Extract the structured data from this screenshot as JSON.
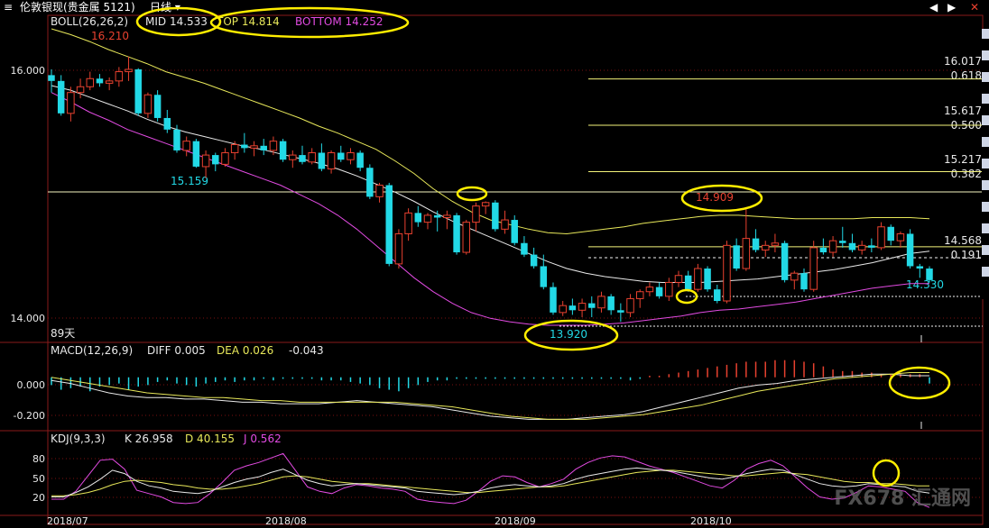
{
  "window": {
    "title": "伦敦银现(贵金属 5121)",
    "period": "日线",
    "menu_icon": "menu-icon",
    "nav_prev_icon": "arrow-left-icon",
    "nav_next_icon": "arrow-right-icon",
    "close_icon": "close-icon"
  },
  "colors": {
    "up": "#e8412f",
    "down": "#22d9e6",
    "mid": "#e9e9e9",
    "top": "#e8e85a",
    "bottom": "#e24be2",
    "grid": "#7a1111",
    "highlight": "#ffee00",
    "macd_pos": "#e8412f",
    "macd_neg": "#22d9e6"
  },
  "legend": {
    "boll": {
      "label": "BOLL(26,26,2)",
      "mid": "MID 14.533",
      "top": "TOP 14.814",
      "bottom": "BOTTOM 14.252"
    },
    "macd": {
      "label": "MACD(12,26,9)",
      "diff": "DIFF 0.005",
      "dea": "DEA 0.026",
      "macd": "-0.043"
    },
    "kdj": {
      "label": "KDJ(9,3,3)",
      "k": "K 26.958",
      "d": "D 40.155",
      "j": "J 0.562"
    }
  },
  "annotations": {
    "high_label": "16.210",
    "low1_label": "15.159",
    "low2_label": "13.920",
    "peak_label": "14.909",
    "last_label": "14.330",
    "days_label": "89天"
  },
  "fib_levels": [
    {
      "price": "16.017",
      "ratio": "0.618"
    },
    {
      "price": "15.617",
      "ratio": "0.500"
    },
    {
      "price": "15.217",
      "ratio": "0.382"
    },
    {
      "price": "14.568",
      "ratio": "0.191"
    }
  ],
  "watermark": "FX678 汇通网",
  "chart_data": [
    {
      "type": "candlestick",
      "title": "",
      "ylim": [
        13.82,
        16.45
      ],
      "yticks": [
        "16.000",
        "14.000"
      ],
      "xticks": [
        "2018/07",
        "2018/08",
        "2018/09",
        "2018/10"
      ],
      "ohlc": [
        [
          16.05,
          16.1,
          15.9,
          16.0
        ],
        [
          16.0,
          16.05,
          15.7,
          15.72
        ],
        [
          15.72,
          15.95,
          15.65,
          15.9
        ],
        [
          15.9,
          16.02,
          15.85,
          15.95
        ],
        [
          15.95,
          16.08,
          15.92,
          16.02
        ],
        [
          16.02,
          16.06,
          15.95,
          15.98
        ],
        [
          15.98,
          16.03,
          15.92,
          16.0
        ],
        [
          16.0,
          16.12,
          15.95,
          16.08
        ],
        [
          16.08,
          16.21,
          16.0,
          16.1
        ],
        [
          16.1,
          16.11,
          15.7,
          15.72
        ],
        [
          15.72,
          15.9,
          15.68,
          15.88
        ],
        [
          15.88,
          15.92,
          15.65,
          15.68
        ],
        [
          15.68,
          15.75,
          15.55,
          15.58
        ],
        [
          15.58,
          15.62,
          15.38,
          15.4
        ],
        [
          15.4,
          15.52,
          15.35,
          15.48
        ],
        [
          15.48,
          15.5,
          15.25,
          15.26
        ],
        [
          15.26,
          15.4,
          15.16,
          15.36
        ],
        [
          15.36,
          15.38,
          15.22,
          15.28
        ],
        [
          15.28,
          15.42,
          15.26,
          15.38
        ],
        [
          15.38,
          15.48,
          15.32,
          15.45
        ],
        [
          15.45,
          15.55,
          15.38,
          15.42
        ],
        [
          15.42,
          15.48,
          15.35,
          15.44
        ],
        [
          15.44,
          15.5,
          15.36,
          15.4
        ],
        [
          15.4,
          15.52,
          15.36,
          15.48
        ],
        [
          15.48,
          15.5,
          15.3,
          15.32
        ],
        [
          15.32,
          15.4,
          15.25,
          15.36
        ],
        [
          15.36,
          15.44,
          15.28,
          15.3
        ],
        [
          15.3,
          15.42,
          15.28,
          15.38
        ],
        [
          15.38,
          15.46,
          15.22,
          15.24
        ],
        [
          15.24,
          15.4,
          15.2,
          15.38
        ],
        [
          15.38,
          15.44,
          15.3,
          15.32
        ],
        [
          15.32,
          15.42,
          15.28,
          15.38
        ],
        [
          15.38,
          15.4,
          15.22,
          15.25
        ],
        [
          15.25,
          15.28,
          14.98,
          15.0
        ],
        [
          15.0,
          15.12,
          14.95,
          15.1
        ],
        [
          15.1,
          15.12,
          14.4,
          14.42
        ],
        [
          14.42,
          14.72,
          14.38,
          14.68
        ],
        [
          14.68,
          14.9,
          14.62,
          14.86
        ],
        [
          14.86,
          14.92,
          14.74,
          14.78
        ],
        [
          14.78,
          14.86,
          14.72,
          14.84
        ],
        [
          14.84,
          14.88,
          14.7,
          14.82
        ],
        [
          14.82,
          14.88,
          14.72,
          14.84
        ],
        [
          14.84,
          14.86,
          14.5,
          14.52
        ],
        [
          14.52,
          14.8,
          14.5,
          14.78
        ],
        [
          14.78,
          14.95,
          14.7,
          14.92
        ],
        [
          14.92,
          14.96,
          14.85,
          14.95
        ],
        [
          14.95,
          14.97,
          14.7,
          14.72
        ],
        [
          14.72,
          14.88,
          14.68,
          14.8
        ],
        [
          14.8,
          14.84,
          14.58,
          14.6
        ],
        [
          14.6,
          14.66,
          14.48,
          14.5
        ],
        [
          14.5,
          14.56,
          14.38,
          14.4
        ],
        [
          14.4,
          14.5,
          14.2,
          14.22
        ],
        [
          14.22,
          14.26,
          13.98,
          14.0
        ],
        [
          14.0,
          14.1,
          13.97,
          14.06
        ],
        [
          14.06,
          14.12,
          13.98,
          14.02
        ],
        [
          14.02,
          14.12,
          13.96,
          14.08
        ],
        [
          14.08,
          14.14,
          13.96,
          14.04
        ],
        [
          14.04,
          14.18,
          14.0,
          14.14
        ],
        [
          14.14,
          14.16,
          13.98,
          14.02
        ],
        [
          14.02,
          14.08,
          13.92,
          14.0
        ],
        [
          14.0,
          14.16,
          13.96,
          14.12
        ],
        [
          14.12,
          14.2,
          14.04,
          14.18
        ],
        [
          14.18,
          14.26,
          14.14,
          14.22
        ],
        [
          14.22,
          14.26,
          14.12,
          14.14
        ],
        [
          14.14,
          14.3,
          14.1,
          14.26
        ],
        [
          14.26,
          14.36,
          14.22,
          14.32
        ],
        [
          14.32,
          14.36,
          14.18,
          14.2
        ],
        [
          14.2,
          14.42,
          14.18,
          14.38
        ],
        [
          14.38,
          14.4,
          14.18,
          14.2
        ],
        [
          14.2,
          14.24,
          14.08,
          14.1
        ],
        [
          14.1,
          14.62,
          14.08,
          14.58
        ],
        [
          14.58,
          14.64,
          14.36,
          14.38
        ],
        [
          14.38,
          14.91,
          14.36,
          14.64
        ],
        [
          14.64,
          14.72,
          14.52,
          14.54
        ],
        [
          14.54,
          14.62,
          14.48,
          14.58
        ],
        [
          14.58,
          14.68,
          14.52,
          14.6
        ],
        [
          14.6,
          14.62,
          14.26,
          14.28
        ],
        [
          14.28,
          14.36,
          14.2,
          14.34
        ],
        [
          14.34,
          14.38,
          14.18,
          14.2
        ],
        [
          14.2,
          14.62,
          14.18,
          14.56
        ],
        [
          14.56,
          14.64,
          14.5,
          14.52
        ],
        [
          14.52,
          14.66,
          14.48,
          14.62
        ],
        [
          14.62,
          14.74,
          14.56,
          14.6
        ],
        [
          14.6,
          14.68,
          14.52,
          14.54
        ],
        [
          14.54,
          14.62,
          14.5,
          14.58
        ],
        [
          14.58,
          14.64,
          14.52,
          14.56
        ],
        [
          14.56,
          14.78,
          14.54,
          14.74
        ],
        [
          14.74,
          14.76,
          14.58,
          14.62
        ],
        [
          14.62,
          14.7,
          14.56,
          14.68
        ],
        [
          14.68,
          14.72,
          14.38,
          14.4
        ],
        [
          14.4,
          14.42,
          14.3,
          14.38
        ],
        [
          14.38,
          14.4,
          14.26,
          14.28
        ]
      ],
      "mid": [
        15.96,
        15.92,
        15.86,
        15.8,
        15.74,
        15.67,
        15.61,
        15.56,
        15.52,
        15.48,
        15.44,
        15.41,
        15.37,
        15.33,
        15.29,
        15.24,
        15.18,
        15.11,
        15.04,
        14.96,
        14.87,
        14.79,
        14.72,
        14.65,
        14.58,
        14.51,
        14.44,
        14.38,
        14.34,
        14.31,
        14.29,
        14.27,
        14.26,
        14.26,
        14.26,
        14.27,
        14.28,
        14.29,
        14.31,
        14.33,
        14.35,
        14.37,
        14.4,
        14.43,
        14.47,
        14.51,
        14.53
      ],
      "top": [
        16.45,
        16.4,
        16.34,
        16.27,
        16.21,
        16.15,
        16.08,
        16.03,
        15.98,
        15.92,
        15.86,
        15.8,
        15.74,
        15.68,
        15.61,
        15.55,
        15.48,
        15.41,
        15.31,
        15.2,
        15.07,
        14.96,
        14.87,
        14.8,
        14.76,
        14.72,
        14.69,
        14.68,
        14.7,
        14.72,
        14.74,
        14.77,
        14.79,
        14.81,
        14.83,
        14.84,
        14.84,
        14.83,
        14.82,
        14.81,
        14.81,
        14.81,
        14.81,
        14.82,
        14.82,
        14.82,
        14.81
      ],
      "bottom": [
        15.9,
        15.82,
        15.73,
        15.66,
        15.58,
        15.52,
        15.46,
        15.4,
        15.34,
        15.28,
        15.22,
        15.16,
        15.1,
        15.02,
        14.94,
        14.84,
        14.72,
        14.58,
        14.44,
        14.3,
        14.18,
        14.08,
        14.0,
        13.95,
        13.92,
        13.9,
        13.89,
        13.89,
        13.89,
        13.9,
        13.91,
        13.93,
        13.95,
        13.97,
        14.0,
        14.02,
        14.03,
        14.05,
        14.07,
        14.09,
        14.12,
        14.15,
        14.18,
        14.21,
        14.23,
        14.25,
        14.25
      ]
    },
    {
      "type": "bar",
      "title": "MACD(12,26,9)",
      "ylim": [
        -0.32,
        0.12
      ],
      "yticks": [
        "0.000",
        "-0.200"
      ],
      "macd": [
        -0.05,
        -0.08,
        -0.07,
        -0.06,
        -0.09,
        -0.06,
        -0.05,
        -0.04,
        -0.08,
        -0.06,
        -0.05,
        -0.03,
        -0.02,
        -0.04,
        -0.05,
        -0.06,
        -0.04,
        -0.03,
        -0.02,
        -0.03,
        -0.02,
        -0.02,
        -0.01,
        -0.02,
        -0.01,
        -0.01,
        -0.01,
        -0.01,
        -0.02,
        -0.02,
        -0.02,
        -0.03,
        -0.04,
        -0.05,
        -0.07,
        -0.08,
        -0.09,
        -0.07,
        -0.05,
        -0.03,
        -0.02,
        -0.02,
        -0.01,
        -0.01,
        -0.01,
        -0.01,
        -0.01,
        -0.01,
        -0.01,
        -0.01,
        -0.01,
        -0.01,
        -0.01,
        -0.01,
        -0.01,
        -0.01,
        -0.01,
        -0.01,
        -0.01,
        -0.01,
        -0.02,
        -0.01,
        0.01,
        0.01,
        0.02,
        0.03,
        0.04,
        0.05,
        0.06,
        0.07,
        0.08,
        0.09,
        0.1,
        0.1,
        0.1,
        0.11,
        0.11,
        0.11,
        0.1,
        0.09,
        0.07,
        0.05,
        0.04,
        0.04,
        0.03,
        0.03,
        0.02,
        0.02,
        0.02,
        0.02,
        0.02,
        -0.04
      ],
      "diff": [
        -0.02,
        -0.04,
        -0.07,
        -0.1,
        -0.12,
        -0.13,
        -0.13,
        -0.14,
        -0.14,
        -0.15,
        -0.16,
        -0.16,
        -0.17,
        -0.17,
        -0.17,
        -0.16,
        -0.15,
        -0.16,
        -0.17,
        -0.18,
        -0.19,
        -0.21,
        -0.23,
        -0.25,
        -0.26,
        -0.27,
        -0.27,
        -0.27,
        -0.26,
        -0.25,
        -0.24,
        -0.22,
        -0.19,
        -0.16,
        -0.13,
        -0.1,
        -0.07,
        -0.05,
        -0.04,
        -0.02,
        -0.01,
        0.0,
        0.01,
        0.02,
        0.02,
        0.01,
        0.01
      ],
      "dea": [
        0.0,
        -0.02,
        -0.04,
        -0.06,
        -0.08,
        -0.1,
        -0.11,
        -0.12,
        -0.13,
        -0.13,
        -0.14,
        -0.15,
        -0.15,
        -0.16,
        -0.16,
        -0.16,
        -0.16,
        -0.16,
        -0.16,
        -0.17,
        -0.18,
        -0.19,
        -0.21,
        -0.23,
        -0.25,
        -0.26,
        -0.27,
        -0.27,
        -0.27,
        -0.26,
        -0.25,
        -0.24,
        -0.22,
        -0.2,
        -0.18,
        -0.15,
        -0.12,
        -0.09,
        -0.07,
        -0.05,
        -0.03,
        -0.01,
        0.0,
        0.01,
        0.02,
        0.03,
        0.03
      ]
    },
    {
      "type": "line",
      "title": "KDJ(9,3,3)",
      "ylim": [
        0,
        100
      ],
      "yticks": [
        "80",
        "50",
        "20"
      ],
      "k": [
        20,
        20,
        28,
        38,
        52,
        68,
        62,
        48,
        40,
        36,
        30,
        28,
        26,
        30,
        38,
        46,
        52,
        56,
        64,
        70,
        60,
        50,
        44,
        40,
        42,
        44,
        42,
        40,
        38,
        36,
        30,
        28,
        26,
        24,
        26,
        30,
        36,
        40,
        42,
        40,
        38,
        40,
        44,
        52,
        58,
        62,
        66,
        70,
        72,
        70,
        68,
        66,
        62,
        58,
        54,
        52,
        56,
        62,
        66,
        70,
        68,
        60,
        52,
        44,
        40,
        38,
        40,
        44,
        42,
        40,
        38,
        30,
        27
      ],
      "d": [
        22,
        22,
        24,
        28,
        34,
        42,
        48,
        50,
        48,
        46,
        42,
        40,
        36,
        34,
        34,
        36,
        40,
        44,
        50,
        56,
        58,
        56,
        52,
        48,
        46,
        44,
        44,
        42,
        40,
        38,
        36,
        34,
        32,
        30,
        28,
        28,
        30,
        32,
        34,
        36,
        38,
        38,
        40,
        44,
        48,
        52,
        56,
        60,
        64,
        66,
        68,
        68,
        66,
        64,
        62,
        60,
        58,
        58,
        60,
        62,
        64,
        62,
        60,
        56,
        52,
        48,
        46,
        46,
        44,
        44,
        42,
        40,
        40
      ],
      "j": [
        16,
        16,
        30,
        58,
        86,
        88,
        70,
        32,
        26,
        20,
        10,
        8,
        10,
        26,
        46,
        68,
        76,
        82,
        90,
        98,
        68,
        38,
        30,
        26,
        36,
        42,
        40,
        36,
        34,
        30,
        16,
        12,
        10,
        8,
        14,
        30,
        48,
        58,
        56,
        46,
        38,
        44,
        52,
        70,
        82,
        90,
        94,
        92,
        84,
        76,
        70,
        64,
        56,
        48,
        40,
        36,
        50,
        70,
        80,
        86,
        76,
        56,
        36,
        20,
        16,
        18,
        28,
        40,
        38,
        34,
        30,
        10,
        1
      ]
    }
  ]
}
